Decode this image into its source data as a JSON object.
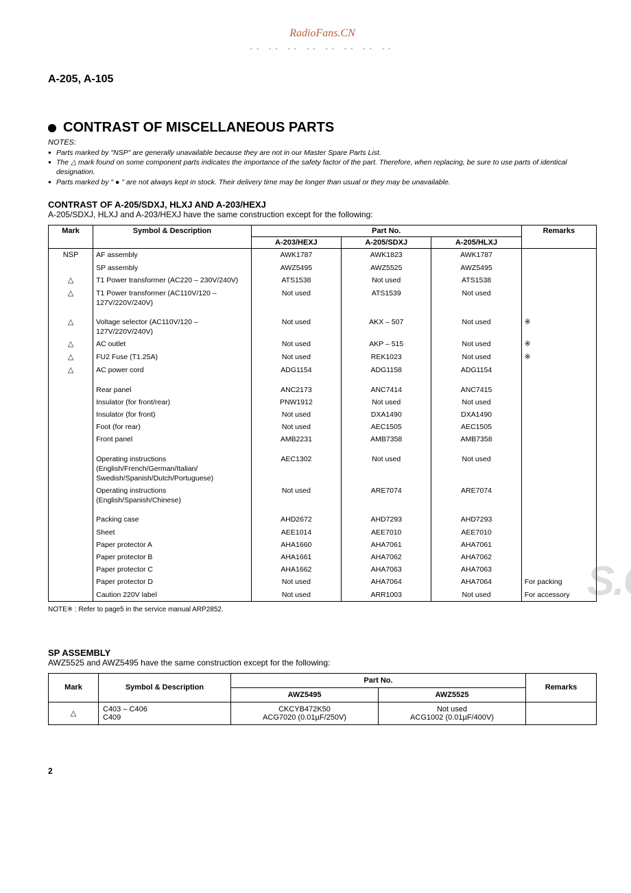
{
  "watermark_top": "RadioFans.CN",
  "dash_line": "-- -- -- -- -- -- -- --",
  "model_header": "A-205, A-105",
  "section_title": "CONTRAST OF MISCELLANEOUS PARTS",
  "notes_label": "NOTES:",
  "notes": [
    "Parts marked by \"NSP\" are generally unavailable because they are not in our Master Spare Parts List.",
    "The △ mark found on some component parts indicates the importance of the safety factor of the part. Therefore, when replacing, be sure to use parts of identical designation.",
    "Parts marked by \" ● \" are not always kept in stock. Their delivery time may be longer than usual or they may be unavailable."
  ],
  "contrast_heading": "CONTRAST OF A-205/SDXJ, HLXJ AND A-203/HEXJ",
  "contrast_desc": "A-205/SDXJ, HLXJ and A-203/HEXJ have the same construction except for the following:",
  "table1": {
    "head_mark": "Mark",
    "head_sym": "Symbol & Description",
    "head_partno": "Part No.",
    "head_a203": "A-203/HEXJ",
    "head_a205s": "A-205/SDXJ",
    "head_a205h": "A-205/HLXJ",
    "head_rem": "Remarks",
    "rows": [
      {
        "mark": "NSP",
        "sym": "AF assembly",
        "c1": "AWK1787",
        "c2": "AWK1823",
        "c3": "AWK1787",
        "rem": ""
      },
      {
        "mark": "",
        "sym": "SP assembly",
        "c1": "AWZ5495",
        "c2": "AWZ5525",
        "c3": "AWZ5495",
        "rem": ""
      },
      {
        "mark": "△",
        "sym": "T1 Power transformer (AC220 – 230V/240V)",
        "c1": "ATS1538",
        "c2": "Not used",
        "c3": "ATS1538",
        "rem": ""
      },
      {
        "mark": "△",
        "sym": "T1 Power transformer (AC110V/120 – 127V/220V/240V)",
        "c1": "Not used",
        "c2": "ATS1539",
        "c3": "Not used",
        "rem": ""
      },
      {
        "mark": "△",
        "sym": "Voltage selector (AC110V/120 – 127V/220V/240V)",
        "c1": "Not used",
        "c2": "AKX – 507",
        "c3": "Not used",
        "rem": "※"
      },
      {
        "mark": "△",
        "sym": "AC outlet",
        "c1": "Not used",
        "c2": "AKP – 515",
        "c3": "Not used",
        "rem": "※"
      },
      {
        "mark": "△",
        "sym": "FU2 Fuse (T1.25A)",
        "c1": "Not used",
        "c2": "REK1023",
        "c3": "Not used",
        "rem": "※"
      },
      {
        "mark": "△",
        "sym": "AC power cord",
        "c1": "ADG1154",
        "c2": "ADG1158",
        "c3": "ADG1154",
        "rem": ""
      },
      {
        "mark": "",
        "sym": "Rear panel",
        "c1": "ANC2173",
        "c2": "ANC7414",
        "c3": "ANC7415",
        "rem": ""
      },
      {
        "mark": "",
        "sym": "Insulator (for front/rear)",
        "c1": "PNW1912",
        "c2": "Not used",
        "c3": "Not used",
        "rem": ""
      },
      {
        "mark": "",
        "sym": "Insulator (for front)",
        "c1": "Not used",
        "c2": "DXA1490",
        "c3": "DXA1490",
        "rem": ""
      },
      {
        "mark": "",
        "sym": "Foot (for rear)",
        "c1": "Not used",
        "c2": "AEC1505",
        "c3": "AEC1505",
        "rem": ""
      },
      {
        "mark": "",
        "sym": "Front panel",
        "c1": "AMB2231",
        "c2": "AMB7358",
        "c3": "AMB7358",
        "rem": ""
      },
      {
        "mark": "",
        "sym": "Operating instructions (English/French/German/Italian/ Swedish/Spanish/Dutch/Portuguese)",
        "c1": "AEC1302",
        "c2": "Not used",
        "c3": "Not used",
        "rem": ""
      },
      {
        "mark": "",
        "sym": "Operating instructions (English/Spanish/Chinese)",
        "c1": "Not used",
        "c2": "ARE7074",
        "c3": "ARE7074",
        "rem": ""
      },
      {
        "mark": "",
        "sym": "Packing case",
        "c1": "AHD2672",
        "c2": "AHD7293",
        "c3": "AHD7293",
        "rem": ""
      },
      {
        "mark": "",
        "sym": "Sheet",
        "c1": "AEE1014",
        "c2": "AEE7010",
        "c3": "AEE7010",
        "rem": ""
      },
      {
        "mark": "",
        "sym": "Paper protector A",
        "c1": "AHA1660",
        "c2": "AHA7061",
        "c3": "AHA7061",
        "rem": ""
      },
      {
        "mark": "",
        "sym": "Paper protector B",
        "c1": "AHA1661",
        "c2": "AHA7062",
        "c3": "AHA7062",
        "rem": ""
      },
      {
        "mark": "",
        "sym": "Paper protector C",
        "c1": "AHA1662",
        "c2": "AHA7063",
        "c3": "AHA7063",
        "rem": ""
      },
      {
        "mark": "",
        "sym": "Paper protector D",
        "c1": "Not used",
        "c2": "AHA7064",
        "c3": "AHA7064",
        "rem": "For packing"
      },
      {
        "mark": "",
        "sym": "Caution 220V label",
        "c1": "Not used",
        "c2": "ARR1003",
        "c3": "Not used",
        "rem": "For accessory"
      }
    ]
  },
  "footnote": "NOTE※ : Refer to page5 in the service manual ARP2852.",
  "sp_title": "SP ASSEMBLY",
  "sp_desc": "AWZ5525 and AWZ5495 have the same construction except for the following:",
  "table2": {
    "head_mark": "Mark",
    "head_sym": "Symbol & Description",
    "head_partno": "Part No.",
    "head_c1": "AWZ5495",
    "head_c2": "AWZ5525",
    "head_rem": "Remarks",
    "row": {
      "mark": "△",
      "sym1": "C403 – C406",
      "sym2": "C409",
      "c1a": "CKCYB472K50",
      "c1b": "ACG7020 (0.01µF/250V)",
      "c2a": "Not used",
      "c2b": "ACG1002 (0.01µF/400V)",
      "rem": ""
    }
  },
  "watermark_big": "S.C",
  "page_mark": "2"
}
